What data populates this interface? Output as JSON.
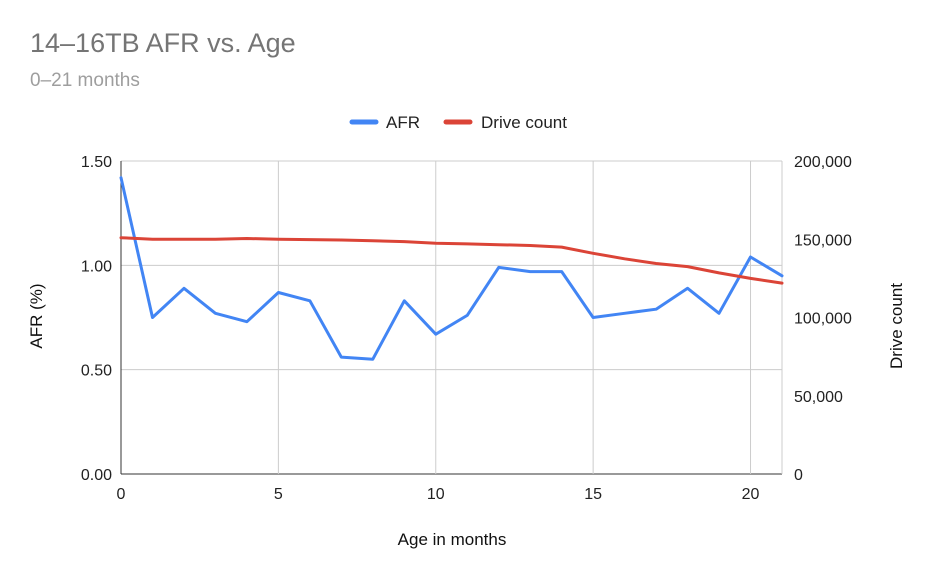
{
  "chart_data": {
    "type": "line",
    "title": "14–16TB AFR vs. Age",
    "subtitle": "0–21 months",
    "xlabel": "Age in months",
    "ylabel_left": "AFR (%)",
    "ylabel_right": "Drive count",
    "xlim": [
      0,
      21
    ],
    "ylim_left": [
      0,
      1.5
    ],
    "ylim_right": [
      0,
      200000
    ],
    "x_ticks": [
      0,
      5,
      10,
      15,
      20
    ],
    "x_tick_labels": [
      "0",
      "5",
      "10",
      "15",
      "20"
    ],
    "y_left_ticks": [
      0,
      0.5,
      1.0,
      1.5
    ],
    "y_left_tick_labels": [
      "0.00",
      "0.50",
      "1.00",
      "1.50"
    ],
    "y_right_ticks": [
      0,
      50000,
      100000,
      150000,
      200000
    ],
    "y_right_tick_labels": [
      "0",
      "50,000",
      "100,000",
      "150,000",
      "200,000"
    ],
    "grid": true,
    "legend_position": "top",
    "x": [
      0,
      1,
      2,
      3,
      4,
      5,
      6,
      7,
      8,
      9,
      10,
      11,
      12,
      13,
      14,
      15,
      16,
      17,
      18,
      19,
      20,
      21
    ],
    "series": [
      {
        "name": "AFR",
        "axis": "left",
        "color": "#4285f4",
        "values": [
          1.42,
          0.75,
          0.89,
          0.77,
          0.73,
          0.87,
          0.83,
          0.56,
          0.55,
          0.83,
          0.67,
          0.76,
          0.99,
          0.97,
          0.97,
          0.75,
          0.77,
          0.79,
          0.89,
          0.77,
          1.04,
          0.95
        ]
      },
      {
        "name": "Drive count",
        "axis": "right",
        "color": "#db4437",
        "values": [
          151000,
          150000,
          150000,
          150000,
          150500,
          150000,
          149800,
          149500,
          149000,
          148500,
          147500,
          147000,
          146500,
          146000,
          145000,
          141000,
          137500,
          134500,
          132500,
          128500,
          125000,
          122000
        ]
      }
    ]
  }
}
